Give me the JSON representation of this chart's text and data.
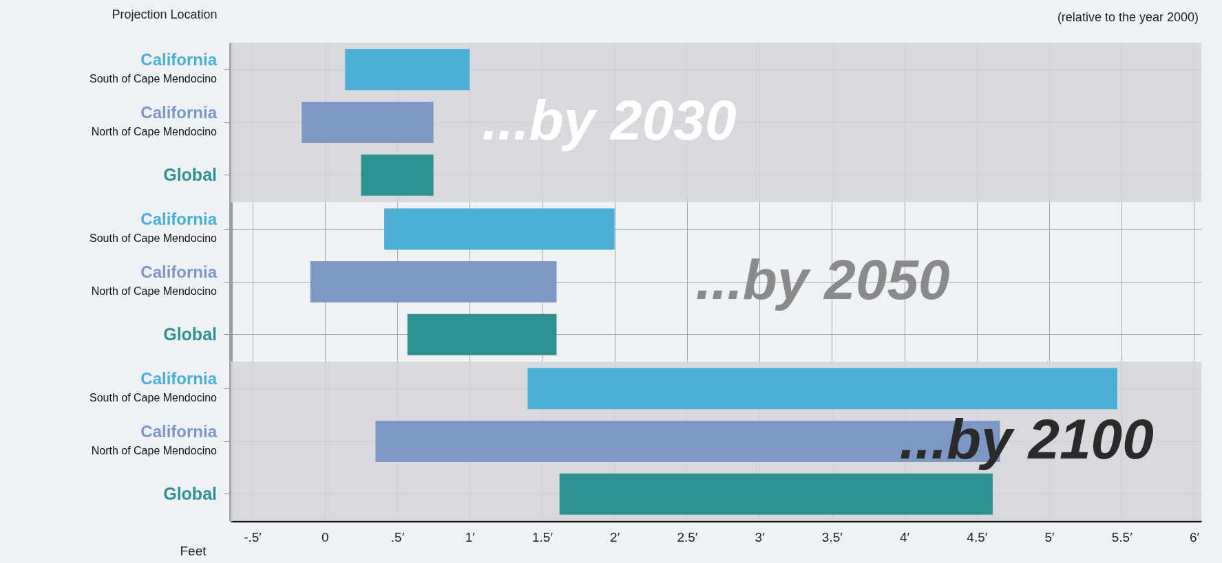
{
  "chart_data": [
    {
      "type": "bar",
      "orientation": "horizontal",
      "ylabel": "Projection Location",
      "annotations": [
        "...by 2030",
        "(relative to the year 2000)"
      ],
      "categories": [
        "California\nSouth of Cape Mendocino",
        "California\nNorth of Cape Mendocino",
        "Global"
      ],
      "base": [
        0.14,
        -0.16,
        0.25
      ],
      "values": [
        0.86,
        0.91,
        0.5
      ],
      "colors": [
        "#4bafd6",
        "#7b99c3",
        "#2e9390"
      ],
      "xlim": [
        -0.65,
        6.05
      ],
      "xticks": [
        {
          "value": -0.5,
          "label": null
        },
        {
          "value": 0,
          "label": null
        },
        {
          "value": 0.5,
          "label": null
        },
        {
          "value": 1,
          "label": null
        },
        {
          "value": 1.5,
          "label": null
        },
        {
          "value": 2,
          "label": null
        },
        {
          "value": 2.5,
          "label": null
        },
        {
          "value": 3,
          "label": null
        },
        {
          "value": 3.5,
          "label": null
        },
        {
          "value": 4,
          "label": null
        },
        {
          "value": 4.5,
          "label": null
        },
        {
          "value": 5,
          "label": null
        },
        {
          "value": 5.5,
          "label": null
        },
        {
          "value": 6,
          "label": null
        }
      ],
      "grid": true,
      "tick_labels": "y",
      "bands": [
        {
          "axis": "x",
          "from": -0.65,
          "to": 6.05,
          "color": "#d3d5d8"
        }
      ]
    },
    {
      "type": "bar",
      "orientation": "horizontal",
      "annotations": [
        "...by 2050"
      ],
      "categories": [
        "California\nSouth of Cape Mendocino",
        "California\nNorth of Cape Mendocino",
        "Global"
      ],
      "base": [
        0.41,
        -0.1,
        0.57
      ],
      "values": [
        1.59,
        1.7,
        1.03
      ],
      "colors": [
        "#4bafd6",
        "#7b99c3",
        "#2e9390"
      ],
      "xlim": [
        -0.65,
        6.05
      ],
      "xticks": [
        {
          "value": -0.5,
          "label": null
        },
        {
          "value": 0,
          "label": null
        },
        {
          "value": 0.5,
          "label": null
        },
        {
          "value": 1,
          "label": null
        },
        {
          "value": 1.5,
          "label": null
        },
        {
          "value": 2,
          "label": null
        },
        {
          "value": 2.5,
          "label": null
        },
        {
          "value": 3,
          "label": null
        },
        {
          "value": 3.5,
          "label": null
        },
        {
          "value": 4,
          "label": null
        },
        {
          "value": 4.5,
          "label": null
        },
        {
          "value": 5,
          "label": null
        },
        {
          "value": 5.5,
          "label": null
        },
        {
          "value": 6,
          "label": null
        }
      ],
      "grid": true,
      "tick_labels": "y"
    },
    {
      "type": "bar",
      "orientation": "horizontal",
      "xlabel": "Feet",
      "annotations": [
        "...by 2100"
      ],
      "categories": [
        "California\nSouth of Cape Mendocino",
        "California\nNorth of Cape Mendocino",
        "Global"
      ],
      "base": [
        1.4,
        0.35,
        1.62
      ],
      "values": [
        4.07,
        4.31,
        2.99
      ],
      "colors": [
        "#4bafd6",
        "#7b99c3",
        "#2e9390"
      ],
      "xlim": [
        -0.65,
        6.05
      ],
      "xticks": [
        {
          "value": -0.5,
          "label": "-.5′"
        },
        0,
        {
          "value": 0.5,
          "label": ".5′"
        },
        {
          "value": 1,
          "label": "1′"
        },
        {
          "value": 1.5,
          "label": "1.5′"
        },
        {
          "value": 2,
          "label": "2′"
        },
        {
          "value": 2.5,
          "label": "2.5′"
        },
        {
          "value": 3,
          "label": "3′"
        },
        {
          "value": 3.5,
          "label": "3.5′"
        },
        {
          "value": 4,
          "label": "4′"
        },
        {
          "value": 4.5,
          "label": "4.5′"
        },
        {
          "value": 5,
          "label": "5′"
        },
        {
          "value": 5.5,
          "label": "5.5′"
        },
        {
          "value": 6,
          "label": "6′"
        }
      ],
      "grid": true,
      "bands": [
        {
          "axis": "x",
          "from": -0.65,
          "to": 6.05,
          "color": "#d3d5d8"
        }
      ]
    }
  ]
}
